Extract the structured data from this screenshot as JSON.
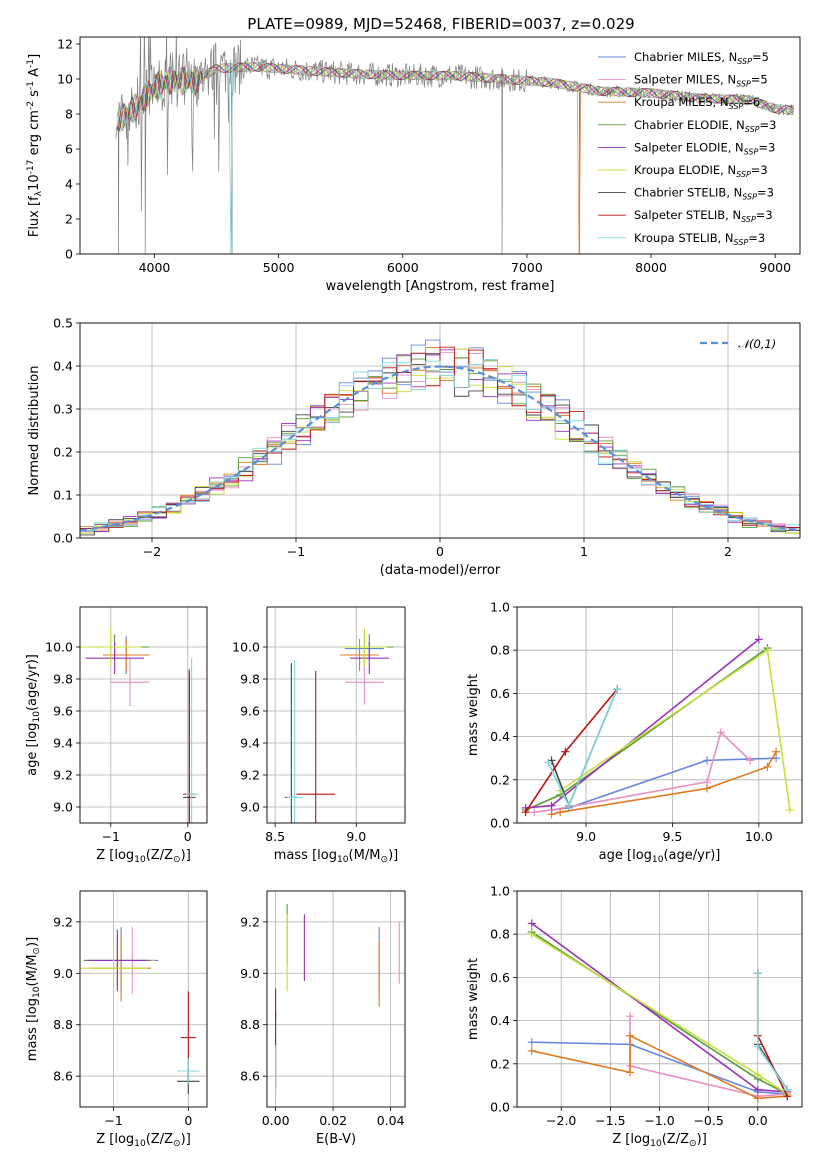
{
  "figure_title": "PLATE=0989, MJD=52468, FIBERID=0037, z=0.029",
  "models": [
    {
      "name": "Chabrier MILES, N$_{SSP}$=5",
      "label_main": "Chabrier MILES, N",
      "label_sub": "SSP",
      "label_tail": "=5",
      "color": "#6688dd"
    },
    {
      "name": "Salpeter MILES, N$_{SSP}$=5",
      "label_main": "Salpeter MILES, N",
      "label_sub": "SSP",
      "label_tail": "=5",
      "color": "#e98fc4"
    },
    {
      "name": "Kroupa MILES, N$_{SSP}$=6",
      "label_main": "Kroupa MILES, N",
      "label_sub": "SSP",
      "label_tail": "=6",
      "color": "#e07a22"
    },
    {
      "name": "Chabrier ELODIE, N$_{SSP}$=3",
      "label_main": "Chabrier ELODIE, N",
      "label_sub": "SSP",
      "label_tail": "=3",
      "color": "#5b9a3b"
    },
    {
      "name": "Salpeter ELODIE, N$_{SSP}$=3",
      "label_main": "Salpeter ELODIE, N",
      "label_sub": "SSP",
      "label_tail": "=3",
      "color": "#9a30b8"
    },
    {
      "name": "Kroupa ELODIE, N$_{SSP}$=3",
      "label_main": "Kroupa ELODIE, N",
      "label_sub": "SSP",
      "label_tail": "=3",
      "color": "#c4e03a"
    },
    {
      "name": "Chabrier STELIB, N$_{SSP}$=3",
      "label_main": "Chabrier STELIB, N",
      "label_sub": "SSP",
      "label_tail": "=3",
      "color": "#444444"
    },
    {
      "name": "Salpeter STELIB, N$_{SSP}$=3",
      "label_main": "Salpeter STELIB, N",
      "label_sub": "SSP",
      "label_tail": "=3",
      "color": "#bb1111"
    },
    {
      "name": "Kroupa STELIB, N$_{SSP}$=3",
      "label_main": "Kroupa STELIB, N",
      "label_sub": "SSP",
      "label_tail": "=3",
      "color": "#80d8dc"
    }
  ],
  "chart_data": [
    {
      "id": "spectrum",
      "type": "line",
      "xlabel": "wavelength [Angstrom, rest frame]",
      "ylabel": "Flux [f$_\\lambda$10$^{-17}$ erg cm$^{-2}$ s$^{-1}$ A$^{-1}$]",
      "xlim": [
        3400,
        9200
      ],
      "ylim": [
        0,
        12.4
      ],
      "xticks": [
        4000,
        5000,
        6000,
        7000,
        8000,
        9000
      ],
      "yticks": [
        0,
        2,
        4,
        6,
        8,
        10,
        12
      ],
      "grid": false,
      "legend_position": "top-right",
      "observed_color": "#808080",
      "continuum_points": [
        [
          3700,
          7.6
        ],
        [
          3850,
          8.4
        ],
        [
          4000,
          9.5
        ],
        [
          4150,
          10.0
        ],
        [
          4300,
          9.8
        ],
        [
          4500,
          10.6
        ],
        [
          4800,
          10.7
        ],
        [
          5200,
          10.5
        ],
        [
          5600,
          10.3
        ],
        [
          6000,
          10.2
        ],
        [
          6400,
          10.2
        ],
        [
          6800,
          10.0
        ],
        [
          7200,
          9.8
        ],
        [
          7600,
          9.3
        ],
        [
          8000,
          9.2
        ],
        [
          8400,
          8.9
        ],
        [
          8800,
          8.8
        ],
        [
          9000,
          8.3
        ],
        [
          9150,
          8.2
        ]
      ]
    },
    {
      "id": "residuals",
      "type": "line",
      "xlabel": "(data-model)/error",
      "ylabel": "Normed distribution",
      "xlim": [
        -2.5,
        2.5
      ],
      "ylim": [
        0,
        0.5
      ],
      "xticks": [
        -2,
        -1,
        0,
        1,
        2
      ],
      "yticks": [
        0.0,
        0.1,
        0.2,
        0.3,
        0.4,
        0.5
      ],
      "grid": true,
      "legend": "$\\mathcal{N}(0,1)$",
      "legend_position": "top-right",
      "series": [
        {
          "name": "$\\mathcal{N}(0,1)$",
          "mu": 0,
          "sigma": 1
        }
      ]
    },
    {
      "id": "age_vs_z",
      "type": "scatter",
      "xlabel": "Z [log$_{10}$(Z/Z$_\\odot$)]",
      "ylabel": "age  [log$_{10}$(age/yr)]",
      "xlim": [
        -1.4,
        0.25
      ],
      "ylim": [
        8.9,
        10.25
      ],
      "xticks": [
        -1,
        0
      ],
      "yticks": [
        9.0,
        9.2,
        9.4,
        9.6,
        9.8,
        10.0
      ],
      "grid": true,
      "points": [
        {
          "m": 0,
          "x": -0.8,
          "y": 9.95,
          "xe": 0.3,
          "ye": 0.12
        },
        {
          "m": 1,
          "x": -0.75,
          "y": 9.78,
          "xe": 0.25,
          "ye": 0.15
        },
        {
          "m": 2,
          "x": -0.8,
          "y": 9.95,
          "xe": 0.3,
          "ye": 0.1
        },
        {
          "m": 3,
          "x": -0.95,
          "y": 10.0,
          "xe": 0.45,
          "ye": 0.08
        },
        {
          "m": 4,
          "x": -0.95,
          "y": 9.93,
          "xe": 0.38,
          "ye": 0.1
        },
        {
          "m": 5,
          "x": -1.0,
          "y": 10.0,
          "xe": 0.4,
          "ye": 0.12
        },
        {
          "m": 6,
          "x": 0.02,
          "y": 9.06,
          "xe": 0.08,
          "ye": 0.8
        },
        {
          "m": 7,
          "x": 0.02,
          "y": 9.08,
          "xe": 0.08,
          "ye": 0.77
        },
        {
          "m": 8,
          "x": 0.05,
          "y": 9.08,
          "xe": 0.08,
          "ye": 0.85
        }
      ]
    },
    {
      "id": "age_vs_mass",
      "type": "scatter",
      "xlabel": "mass [log$_{10}$(M/M$_\\odot$)]",
      "ylabel": "",
      "xlim": [
        8.45,
        9.3
      ],
      "ylim": [
        8.9,
        10.25
      ],
      "xticks": [
        8.5,
        9.0
      ],
      "yticks": [
        9.0,
        9.2,
        9.4,
        9.6,
        9.8,
        10.0
      ],
      "grid": true,
      "points": [
        {
          "m": 0,
          "x": 9.05,
          "y": 9.99,
          "xe": 0.12,
          "ye": 0.1
        },
        {
          "m": 1,
          "x": 9.05,
          "y": 9.78,
          "xe": 0.12,
          "ye": 0.14
        },
        {
          "m": 2,
          "x": 9.02,
          "y": 9.95,
          "xe": 0.12,
          "ye": 0.1
        },
        {
          "m": 3,
          "x": 9.08,
          "y": 10.0,
          "xe": 0.15,
          "ye": 0.08
        },
        {
          "m": 4,
          "x": 9.08,
          "y": 9.93,
          "xe": 0.12,
          "ye": 0.1
        },
        {
          "m": 5,
          "x": 9.05,
          "y": 10.0,
          "xe": 0.14,
          "ye": 0.12
        },
        {
          "m": 6,
          "x": 8.6,
          "y": 9.06,
          "xe": 0.04,
          "ye": 0.84
        },
        {
          "m": 7,
          "x": 8.75,
          "y": 9.08,
          "xe": 0.12,
          "ye": 0.77
        },
        {
          "m": 8,
          "x": 8.62,
          "y": 9.06,
          "xe": 0.05,
          "ye": 0.86
        }
      ]
    },
    {
      "id": "massweight_vs_age",
      "type": "line",
      "xlabel": "age  [log$_{10}$(age/yr)]",
      "ylabel": "mass weight",
      "xlim": [
        8.6,
        10.25
      ],
      "ylim": [
        0,
        1.0
      ],
      "xticks": [
        9.0,
        9.5,
        10.0
      ],
      "yticks": [
        0.0,
        0.2,
        0.4,
        0.6,
        0.8,
        1.0
      ],
      "grid": true,
      "series": [
        {
          "m": 0,
          "x": [
            8.8,
            8.9,
            9.7,
            10.1
          ],
          "y": [
            0.06,
            0.07,
            0.29,
            0.3
          ]
        },
        {
          "m": 1,
          "x": [
            8.7,
            8.8,
            9.7,
            9.78,
            9.95
          ],
          "y": [
            0.05,
            0.06,
            0.19,
            0.42,
            0.29
          ]
        },
        {
          "m": 2,
          "x": [
            8.8,
            8.85,
            9.7,
            10.05,
            10.1
          ],
          "y": [
            0.04,
            0.05,
            0.16,
            0.26,
            0.33
          ]
        },
        {
          "m": 3,
          "x": [
            8.65,
            8.85,
            10.05
          ],
          "y": [
            0.06,
            0.13,
            0.81
          ]
        },
        {
          "m": 4,
          "x": [
            8.65,
            8.8,
            10.0
          ],
          "y": [
            0.07,
            0.08,
            0.85
          ]
        },
        {
          "m": 5,
          "x": [
            8.85,
            10.05,
            10.18
          ],
          "y": [
            0.15,
            0.8,
            0.06
          ]
        },
        {
          "m": 6,
          "x": [
            8.8,
            8.9,
            9.18
          ],
          "y": [
            0.29,
            0.08,
            0.62
          ]
        },
        {
          "m": 7,
          "x": [
            8.65,
            8.88,
            9.18
          ],
          "y": [
            0.05,
            0.33,
            0.62
          ]
        },
        {
          "m": 8,
          "x": [
            8.78,
            8.9,
            9.18
          ],
          "y": [
            0.28,
            0.08,
            0.62
          ]
        }
      ]
    },
    {
      "id": "mass_vs_z",
      "type": "scatter",
      "xlabel": "Z [log$_{10}$(Z/Z$_\\odot$)]",
      "ylabel": "mass [log$_{10}$(M/M$_\\odot$)]",
      "xlim": [
        -1.45,
        0.25
      ],
      "ylim": [
        8.48,
        9.32
      ],
      "xticks": [
        -1,
        0
      ],
      "yticks": [
        8.6,
        8.8,
        9.0,
        9.2
      ],
      "grid": true,
      "points": [
        {
          "m": 0,
          "x": -0.9,
          "y": 9.05,
          "xe": 0.5,
          "ye": 0.13
        },
        {
          "m": 1,
          "x": -0.75,
          "y": 9.05,
          "xe": 0.3,
          "ye": 0.13
        },
        {
          "m": 2,
          "x": -0.9,
          "y": 9.02,
          "xe": 0.4,
          "ye": 0.13
        },
        {
          "m": 3,
          "x": -0.95,
          "y": 9.05,
          "xe": 0.45,
          "ye": 0.1
        },
        {
          "m": 4,
          "x": -0.95,
          "y": 9.05,
          "xe": 0.4,
          "ye": 0.12
        },
        {
          "m": 5,
          "x": -1.0,
          "y": 9.02,
          "xe": 0.45,
          "ye": 0.08
        },
        {
          "m": 6,
          "x": 0.0,
          "y": 8.58,
          "xe": 0.15,
          "ye": 0.05
        },
        {
          "m": 7,
          "x": 0.0,
          "y": 8.75,
          "xe": 0.1,
          "ye": 0.18
        },
        {
          "m": 8,
          "x": 0.0,
          "y": 8.62,
          "xe": 0.15,
          "ye": 0.05
        }
      ]
    },
    {
      "id": "mass_vs_ebv",
      "type": "scatter",
      "xlabel": "E(B-V)",
      "ylabel": "",
      "xlim": [
        -0.003,
        0.045
      ],
      "ylim": [
        8.48,
        9.32
      ],
      "xticks": [
        0.0,
        0.02,
        0.04
      ],
      "yticks": [
        8.6,
        8.8,
        9.0,
        9.2
      ],
      "grid": true,
      "points": [
        {
          "m": 0,
          "x": 0.036,
          "y": 9.05,
          "xe": 0,
          "ye": 0.13
        },
        {
          "m": 1,
          "x": 0.043,
          "y": 9.08,
          "xe": 0,
          "ye": 0.12
        },
        {
          "m": 2,
          "x": 0.036,
          "y": 9.0,
          "xe": 0,
          "ye": 0.13
        },
        {
          "m": 3,
          "x": 0.004,
          "y": 9.15,
          "xe": 0,
          "ye": 0.12
        },
        {
          "m": 4,
          "x": 0.01,
          "y": 9.1,
          "xe": 0,
          "ye": 0.13
        },
        {
          "m": 5,
          "x": 0.004,
          "y": 9.08,
          "xe": 0,
          "ye": 0.15
        },
        {
          "m": 6,
          "x": 0.0,
          "y": 8.7,
          "xe": 0,
          "ye": 0.15
        },
        {
          "m": 7,
          "x": 0.0,
          "y": 8.88,
          "xe": 0,
          "ye": 0.06
        },
        {
          "m": 8,
          "x": 0.0,
          "y": 8.62,
          "xe": 0,
          "ye": 0.1
        }
      ]
    },
    {
      "id": "massweight_vs_z",
      "type": "line",
      "xlabel": "Z [log$_{10}$(Z/Z$_\\odot$)]",
      "ylabel": "mass weight",
      "xlim": [
        -2.45,
        0.45
      ],
      "ylim": [
        0,
        1.0
      ],
      "xticks": [
        -2.0,
        -1.5,
        -1.0,
        -0.5,
        0.0
      ],
      "yticks": [
        0.0,
        0.2,
        0.4,
        0.6,
        0.8,
        1.0
      ],
      "grid": true,
      "series": [
        {
          "m": 0,
          "x": [
            -2.3,
            -1.3,
            0.0,
            0.3
          ],
          "y": [
            0.3,
            0.29,
            0.07,
            0.06
          ]
        },
        {
          "m": 1,
          "x": [
            -1.3,
            -1.3,
            0.0,
            0.3
          ],
          "y": [
            0.42,
            0.19,
            0.05,
            0.06
          ]
        },
        {
          "m": 2,
          "x": [
            -2.3,
            -1.3,
            -1.3,
            0.0,
            0.3
          ],
          "y": [
            0.26,
            0.16,
            0.33,
            0.04,
            0.05
          ]
        },
        {
          "m": 3,
          "x": [
            -2.3,
            0.0,
            0.3
          ],
          "y": [
            0.81,
            0.13,
            0.06
          ]
        },
        {
          "m": 4,
          "x": [
            -2.3,
            0.0,
            0.3
          ],
          "y": [
            0.85,
            0.08,
            0.07
          ]
        },
        {
          "m": 5,
          "x": [
            -2.3,
            0.0,
            0.3
          ],
          "y": [
            0.8,
            0.15,
            0.06
          ]
        },
        {
          "m": 6,
          "x": [
            0.0,
            0.0,
            0.3
          ],
          "y": [
            0.62,
            0.29,
            0.08
          ]
        },
        {
          "m": 7,
          "x": [
            0.0,
            0.0,
            0.3
          ],
          "y": [
            0.62,
            0.33,
            0.05
          ]
        },
        {
          "m": 8,
          "x": [
            0.0,
            0.0,
            0.3
          ],
          "y": [
            0.62,
            0.28,
            0.08
          ]
        }
      ]
    }
  ]
}
